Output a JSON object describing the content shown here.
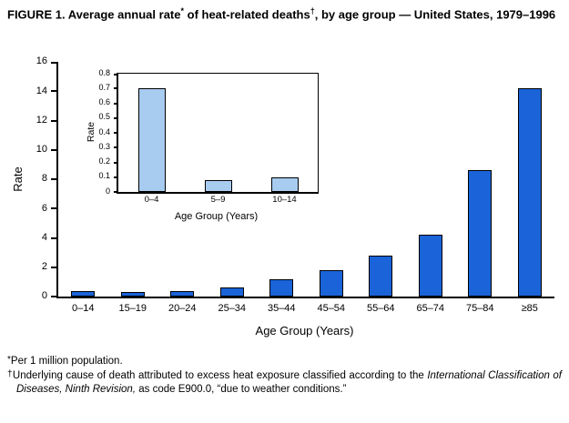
{
  "figure": {
    "title_parts": {
      "p1": "FIGURE 1. Average annual rate",
      "sup1": "*",
      "p2": " of heat-related deaths",
      "sup2": "†",
      "p3": ", by age group — United States, 1979–1996"
    }
  },
  "chart_data": [
    {
      "type": "bar",
      "id": "main",
      "title": "",
      "categories": [
        "0–14",
        "15–19",
        "20–24",
        "25–34",
        "35–44",
        "45–54",
        "55–64",
        "65–74",
        "75–84",
        "≥85"
      ],
      "values": [
        0.4,
        0.3,
        0.4,
        0.6,
        1.2,
        1.8,
        2.8,
        4.2,
        8.6,
        14.2
      ],
      "xlabel": "Age Group (Years)",
      "ylabel": "Rate",
      "ylim": [
        0,
        16
      ],
      "ytick_step": 2,
      "grid": false,
      "legend": "none",
      "bar_color": "#1a63d8"
    },
    {
      "type": "bar",
      "id": "inset",
      "title": "",
      "categories": [
        "0–4",
        "5–9",
        "10–14"
      ],
      "values": [
        0.7,
        0.08,
        0.1
      ],
      "xlabel": "Age Group (Years)",
      "ylabel": "Rate",
      "ylim": [
        0,
        0.8
      ],
      "ytick_step": 0.1,
      "grid": false,
      "legend": "none",
      "bar_color": "#a8cbf0"
    }
  ],
  "footnotes": {
    "asterisk_marker": "*",
    "asterisk_text": "Per 1 million population.",
    "dagger_marker": "†",
    "dagger_prefix": "Underlying cause of death attributed to excess heat exposure classified according to the ",
    "dagger_italic": "International Classification of Diseases, Ninth Revision,",
    "dagger_suffix": " as code E900.0, “due to weather conditions.”"
  }
}
